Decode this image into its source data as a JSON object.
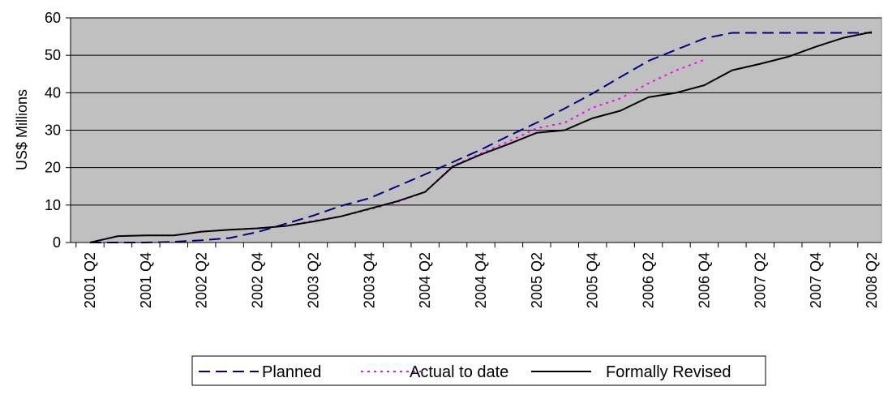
{
  "chart_data": {
    "type": "line",
    "ylabel": "US$ Millions",
    "ylim": [
      0,
      60
    ],
    "yticks": [
      0,
      10,
      20,
      30,
      40,
      50,
      60
    ],
    "categories": [
      "2001 Q2",
      "2001 Q3",
      "2001 Q4",
      "2002 Q1",
      "2002 Q2",
      "2002 Q3",
      "2002 Q4",
      "2003 Q1",
      "2003 Q2",
      "2003 Q3",
      "2003 Q4",
      "2004 Q1",
      "2004 Q2",
      "2004 Q3",
      "2004 Q4",
      "2005 Q1",
      "2005 Q2",
      "2005 Q3",
      "2005 Q4",
      "2006 Q1",
      "2006 Q2",
      "2006 Q3",
      "2006 Q4",
      "2007 Q1",
      "2007 Q2",
      "2007 Q3",
      "2007 Q4",
      "2008 Q1",
      "2008 Q2"
    ],
    "x_tick_labels": [
      "2001 Q2",
      "2001 Q4",
      "2002 Q2",
      "2002 Q4",
      "2003 Q2",
      "2003 Q4",
      "2004 Q2",
      "2004 Q4",
      "2005 Q2",
      "2005 Q4",
      "2006 Q2",
      "2006 Q4",
      "2007 Q2",
      "2007 Q4",
      "2008 Q2"
    ],
    "grid": "horizontal",
    "plot_background": "#c0c0c0",
    "legend_position": "bottom",
    "series": [
      {
        "name": "Planned",
        "color": "#000080",
        "dash": "dashed",
        "values": [
          0,
          0,
          0,
          0.2,
          0.6,
          1.2,
          2.8,
          5.0,
          7.2,
          9.8,
          11.8,
          15.0,
          18.2,
          21.5,
          24.8,
          28.5,
          32.0,
          35.8,
          39.8,
          44.2,
          48.5,
          51.5,
          54.5,
          56.0,
          56.0,
          56.0,
          56.0,
          56.0,
          56.0
        ]
      },
      {
        "name": "Actual to date",
        "color": "#ff00ff",
        "dash": "dotted",
        "values": [
          0,
          1.7,
          1.9,
          1.9,
          2.9,
          3.4,
          3.8,
          4.4,
          5.8,
          7.0,
          8.8,
          10.8,
          13.5,
          20.5,
          23.8,
          27.0,
          30.5,
          32.0,
          36.0,
          38.5,
          42.5,
          46.0,
          48.8,
          null,
          null,
          null,
          null,
          null,
          null
        ]
      },
      {
        "name": "Formally Revised",
        "color": "#000000",
        "dash": "solid",
        "values": [
          0,
          1.7,
          1.9,
          1.9,
          2.9,
          3.4,
          3.8,
          4.4,
          5.6,
          7.0,
          9.0,
          11.0,
          13.5,
          20.3,
          23.5,
          26.3,
          29.3,
          30.0,
          33.2,
          35.2,
          38.8,
          40.0,
          42.0,
          46.0,
          47.7,
          49.6,
          52.3,
          54.7,
          56.2
        ]
      }
    ]
  }
}
